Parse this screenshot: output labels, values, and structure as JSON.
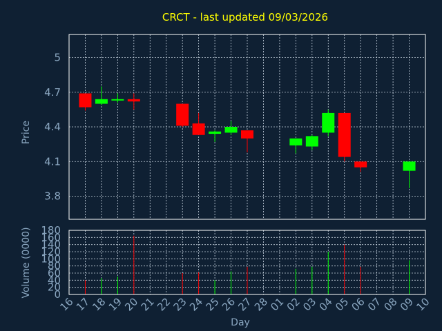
{
  "colors": {
    "background": "#0f2033",
    "title": "#ffff00",
    "axis_text": "#8aa6c0",
    "grid": "#c8d4e0",
    "frame": "#ffffff",
    "up": "#00ff00",
    "down": "#ff0000"
  },
  "chart_data": [
    {
      "type": "candlestick",
      "title": "CRCT - last updated 09/03/2026",
      "ylabel": "Price",
      "ylim": [
        3.6,
        5.2
      ],
      "yticks": [
        3.8,
        4.1,
        4.4,
        4.7,
        5
      ],
      "grid": true,
      "candles": [
        {
          "day": "17",
          "open": 4.69,
          "high": 4.69,
          "low": 4.54,
          "close": 4.57
        },
        {
          "day": "18",
          "open": 4.6,
          "high": 4.75,
          "low": 4.59,
          "close": 4.64
        },
        {
          "day": "19",
          "open": 4.63,
          "high": 4.69,
          "low": 4.61,
          "close": 4.64
        },
        {
          "day": "20",
          "open": 4.64,
          "high": 4.69,
          "low": 4.55,
          "close": 4.62
        },
        {
          "day": "23",
          "open": 4.6,
          "high": 4.6,
          "low": 4.4,
          "close": 4.41
        },
        {
          "day": "24",
          "open": 4.43,
          "high": 4.52,
          "low": 4.33,
          "close": 4.33
        },
        {
          "day": "25",
          "open": 4.34,
          "high": 4.37,
          "low": 4.27,
          "close": 4.36
        },
        {
          "day": "26",
          "open": 4.35,
          "high": 4.45,
          "low": 4.33,
          "close": 4.4
        },
        {
          "day": "27",
          "open": 4.37,
          "high": 4.37,
          "low": 4.18,
          "close": 4.3
        },
        {
          "day": "02",
          "open": 4.24,
          "high": 4.3,
          "low": 4.17,
          "close": 4.3
        },
        {
          "day": "03",
          "open": 4.23,
          "high": 4.33,
          "low": 4.2,
          "close": 4.32
        },
        {
          "day": "04",
          "open": 4.35,
          "high": 4.55,
          "low": 4.32,
          "close": 4.52
        },
        {
          "day": "05",
          "open": 4.52,
          "high": 4.52,
          "low": 4.1,
          "close": 4.14
        },
        {
          "day": "06",
          "open": 4.1,
          "high": 4.1,
          "low": 4.01,
          "close": 4.05
        },
        {
          "day": "09",
          "open": 4.02,
          "high": 4.1,
          "low": 3.87,
          "close": 4.1
        }
      ]
    },
    {
      "type": "bar",
      "ylabel": "Volume (0000)",
      "xlabel": "Day",
      "ylim": [
        0,
        180
      ],
      "yticks": [
        0,
        20,
        40,
        60,
        80,
        100,
        120,
        140,
        160,
        180
      ],
      "grid": true,
      "categories": [
        "16",
        "17",
        "18",
        "19",
        "20",
        "21",
        "22",
        "23",
        "24",
        "25",
        "26",
        "27",
        "28",
        "01",
        "02",
        "03",
        "04",
        "05",
        "06",
        "07",
        "08",
        "09",
        "10"
      ],
      "bars": [
        {
          "day": "17",
          "value": 40,
          "direction": "down"
        },
        {
          "day": "18",
          "value": 46,
          "direction": "up"
        },
        {
          "day": "19",
          "value": 50,
          "direction": "up"
        },
        {
          "day": "20",
          "value": 165,
          "direction": "down"
        },
        {
          "day": "23",
          "value": 60,
          "direction": "down"
        },
        {
          "day": "24",
          "value": 62,
          "direction": "down"
        },
        {
          "day": "25",
          "value": 40,
          "direction": "up"
        },
        {
          "day": "26",
          "value": 65,
          "direction": "up"
        },
        {
          "day": "27",
          "value": 78,
          "direction": "down"
        },
        {
          "day": "02",
          "value": 72,
          "direction": "up"
        },
        {
          "day": "03",
          "value": 78,
          "direction": "up"
        },
        {
          "day": "04",
          "value": 120,
          "direction": "up"
        },
        {
          "day": "05",
          "value": 140,
          "direction": "down"
        },
        {
          "day": "06",
          "value": 78,
          "direction": "down"
        },
        {
          "day": "09",
          "value": 96,
          "direction": "up"
        }
      ]
    }
  ]
}
